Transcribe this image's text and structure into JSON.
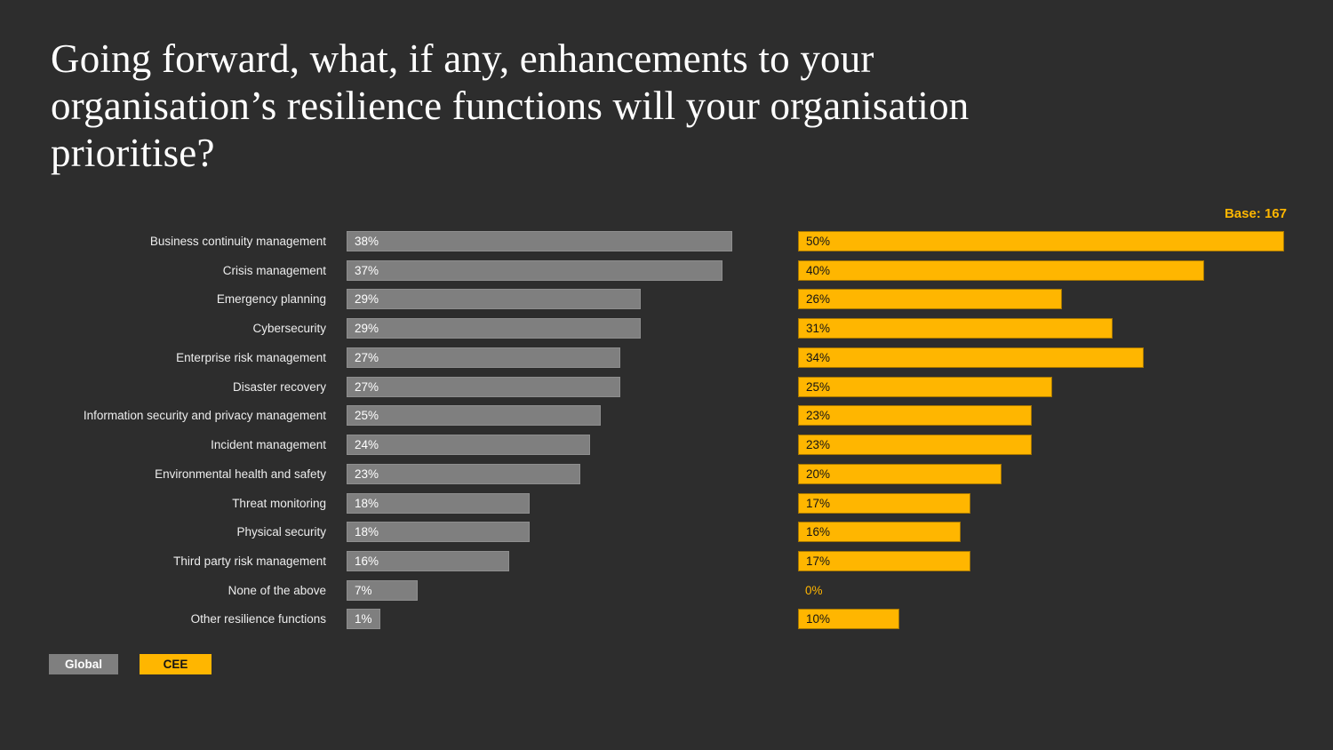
{
  "title": {
    "lines": [
      "Going forward, what, if any, enhancements to your",
      "organisation’s resilience functions will your organisation",
      "prioritise?"
    ]
  },
  "base_label": "Base: 167",
  "legend": {
    "global": "Global",
    "cee": "CEE"
  },
  "colors": {
    "background": "#2D2D2D",
    "title_text": "#FFFFFF",
    "category_text": "#EDEDED",
    "global_bar": "#7F7F7F",
    "global_value_text": "#FFFFFF",
    "cee_bar": "#FFB600",
    "cee_value_text": "#141414",
    "base_label_text": "#FFB600",
    "zero_value_text": "#FFB600"
  },
  "chart_data": {
    "type": "bar",
    "orientation": "horizontal",
    "title": "Going forward, what, if any, enhancements to your organisation’s resilience functions will your organisation prioritise?",
    "annotation": "Base: 167",
    "value_suffix": "%",
    "xlim": [
      0,
      50
    ],
    "grid": false,
    "legend_position": "bottom-left",
    "categories": [
      "Business continuity management",
      "Crisis management",
      "Emergency planning",
      "Cybersecurity",
      "Enterprise risk management",
      "Disaster recovery",
      "Information security and privacy management",
      "Incident management",
      "Environmental health and safety",
      "Threat monitoring",
      "Physical security",
      "Third party risk management",
      "None of the above",
      "Other resilience functions"
    ],
    "series": [
      {
        "name": "Global",
        "color": "#7F7F7F",
        "values": [
          38,
          37,
          29,
          29,
          27,
          27,
          25,
          24,
          23,
          18,
          18,
          16,
          7,
          1
        ]
      },
      {
        "name": "CEE",
        "color": "#FFB600",
        "values": [
          50,
          40,
          26,
          31,
          34,
          25,
          23,
          23,
          20,
          17,
          16,
          17,
          0,
          10
        ]
      }
    ]
  }
}
